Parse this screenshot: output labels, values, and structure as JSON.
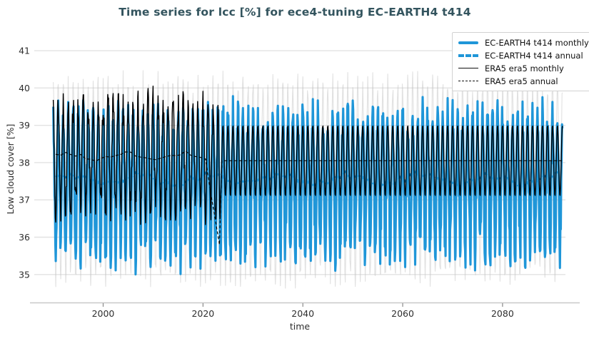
{
  "chart_data": {
    "type": "line",
    "title": "Time series for lcc [%] for ece4-tuning EC-EARTH4 t414",
    "xlabel": "time",
    "ylabel": "Low cloud cover [%]",
    "x_ticks": [
      2000,
      2020,
      2040,
      2060,
      2080
    ],
    "y_ticks": [
      35,
      36,
      37,
      38,
      39,
      40,
      41
    ],
    "x_range": [
      1986.2,
      2092.6
    ],
    "y_range": [
      34.25,
      41.25
    ],
    "grid": "horizontal-only",
    "legend_position": "top-right",
    "colors": {
      "model_blue": "#1f96d8",
      "obs_black": "#000000",
      "background_envelope_gray": "#c4c4c4",
      "gridline": "#e2e2e2",
      "axis_line": "#c8c8c8",
      "title_text": "#33545e",
      "tick_text": "#2e2e2e"
    },
    "series": [
      {
        "name": "unlabeled seasonal envelope (background)",
        "legend_label": null,
        "color": "#c4c4c4",
        "opacity": 0.5,
        "line_width": 1.1,
        "dash": "solid",
        "approx_max": 40.7,
        "approx_min": 34.5,
        "gen": {
          "type": "monthly-noisy",
          "start": 1990,
          "end": 2092,
          "mean": 37.55,
          "amp": 2.6,
          "noise": 0.33,
          "trough_extra": 0,
          "seed": 11
        }
      },
      {
        "name": "EC-EARTH4 t414 monthly",
        "legend_label": "EC-EARTH4 t414 monthly",
        "color": "#1f96d8",
        "opacity": 1,
        "line_width": 3.1,
        "dash": "solid",
        "approx_max": 39.9,
        "approx_min": 34.8,
        "gen": {
          "type": "monthly-noisy",
          "start": 1990,
          "end": 2092,
          "mean": 37.55,
          "amp": 1.72,
          "noise": 0.52,
          "trough_extra": 0.45,
          "seed": 3
        }
      },
      {
        "name": "EC-EARTH4 t414 annual",
        "legend_label": "EC-EARTH4 t414 annual",
        "color": "#1f96d8",
        "opacity": 1,
        "line_width": 3.0,
        "dash": "7 4",
        "approx_mean": 37.55,
        "gen": {
          "type": "annual-noisy",
          "start": 1990.5,
          "end": 2091.5,
          "mean": 37.55,
          "slow_amp": 0.12,
          "slow_freq": 0.45,
          "wiggle": 0.1,
          "seed": 5
        }
      },
      {
        "name": "ERA5 era5 monthly",
        "legend_label": "ERA5 era5 monthly",
        "color": "#000000",
        "opacity": 1,
        "line_width": 1.4,
        "dash": "solid",
        "observed_max": 40.15,
        "observed_min": 35.5,
        "gen": {
          "type": "era5-monthly",
          "obs": {
            "start": 1990,
            "end": 2023.45,
            "mean": 38.2,
            "amp": 1.42,
            "noise": 0.46,
            "dip_start": 2021.4,
            "dip_depth": 1.15,
            "seed": 13
          },
          "clim": {
            "start": 2023.45,
            "end": 2092,
            "mean": 38.05,
            "amp": 0.95
          }
        }
      },
      {
        "name": "ERA5 era5 annual",
        "legend_label": "ERA5 era5 annual",
        "color": "#000000",
        "opacity": 1,
        "line_width": 1.15,
        "dash": "4 3",
        "observed_mean": 38.15,
        "dip_value_2023": 35.8,
        "climatology_value": 38.05,
        "gen": {
          "type": "era5-annual",
          "obs": {
            "start": 1990.5,
            "end": 2023.3,
            "mean": 38.17,
            "slow_amp": 0.1,
            "slow_freq": 0.55,
            "wiggle": 0.07,
            "dip_start": 2020.5,
            "dip_to": 35.8,
            "seed": 17
          },
          "clim": {
            "start": 2023.8,
            "end": 2091.9,
            "value": 38.05
          }
        }
      }
    ]
  }
}
